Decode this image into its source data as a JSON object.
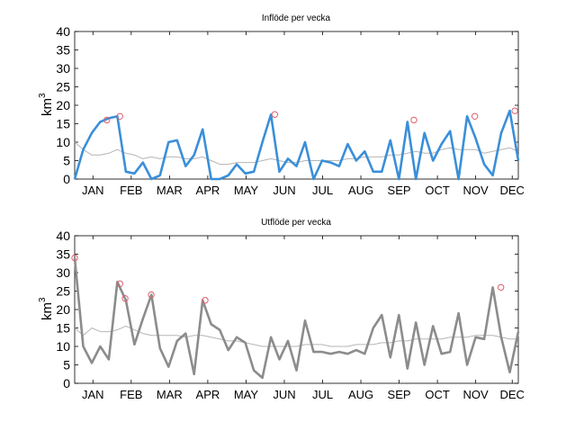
{
  "chart_data": [
    {
      "type": "line",
      "title": "Inflöde per vecka",
      "xlabel": "",
      "ylabel_main": "km",
      "ylabel_sup": "3",
      "ylim": [
        0,
        40
      ],
      "yticks": [
        0,
        5,
        10,
        15,
        20,
        25,
        30,
        35,
        40
      ],
      "xlim": [
        1,
        52
      ],
      "month_labels": [
        "JAN",
        "FEB",
        "MAR",
        "APR",
        "MAY",
        "JUN",
        "JUL",
        "AUG",
        "SEP",
        "OCT",
        "NOV",
        "DEC"
      ],
      "month_positions": [
        3.1,
        7.5,
        11.9,
        16.3,
        20.7,
        25.1,
        29.5,
        33.9,
        38.3,
        42.7,
        47.1,
        51.3
      ],
      "grid": false,
      "series": [
        {
          "color": "#3a8fd9",
          "values": [
            0,
            8,
            12.5,
            15.5,
            16.5,
            17,
            2,
            1.5,
            4.5,
            0,
            1,
            10,
            10.5,
            3.5,
            6.5,
            13.5,
            0,
            0,
            1,
            4,
            1.5,
            2,
            10,
            17.5,
            2,
            5.5,
            3.5,
            10,
            0,
            5,
            4.5,
            3.5,
            9.5,
            5,
            7.5,
            2,
            2,
            10.5,
            0,
            15.5,
            0,
            12.5,
            5,
            9.5,
            13,
            0,
            17,
            11,
            4,
            1,
            12.5,
            18.5,
            5
          ]
        },
        {
          "color": "#b5b5b5",
          "values": [
            10,
            8,
            6.5,
            6.5,
            7,
            8,
            7,
            6.5,
            5.5,
            6,
            5.5,
            6,
            6,
            5.5,
            5.5,
            6,
            5,
            4,
            4,
            4.5,
            4.5,
            4.5,
            5,
            5.5,
            5,
            4.5,
            4.5,
            5,
            5,
            5,
            5,
            5,
            5.5,
            5.5,
            6,
            6,
            6,
            6.5,
            6.5,
            7,
            7.5,
            7,
            7,
            8,
            8.5,
            8,
            8,
            8,
            7,
            7.5,
            8,
            8.5,
            7.5
          ]
        }
      ],
      "peaks": [
        {
          "x": 4.7,
          "y": 16
        },
        {
          "x": 6.2,
          "y": 17
        },
        {
          "x": 24,
          "y": 17.5
        },
        {
          "x": 40,
          "y": 16
        },
        {
          "x": 47,
          "y": 17
        },
        {
          "x": 51.6,
          "y": 18.5
        }
      ]
    },
    {
      "type": "line",
      "title": "Utflöde per vecka",
      "xlabel": "",
      "ylabel_main": "km",
      "ylabel_sup": "3",
      "ylim": [
        0,
        40
      ],
      "yticks": [
        0,
        5,
        10,
        15,
        20,
        25,
        30,
        35,
        40
      ],
      "xlim": [
        1,
        52
      ],
      "month_labels": [
        "JAN",
        "FEB",
        "MAR",
        "APR",
        "MAY",
        "JUN",
        "JUL",
        "AUG",
        "SEP",
        "OCT",
        "NOV",
        "DEC"
      ],
      "month_positions": [
        3.1,
        7.5,
        11.9,
        16.3,
        20.7,
        25.1,
        29.5,
        33.9,
        38.3,
        42.7,
        47.1,
        51.3
      ],
      "grid": false,
      "series": [
        {
          "color": "#8c8c8c",
          "values": [
            34,
            10,
            5.5,
            10,
            6.5,
            27.5,
            22.5,
            10.5,
            17.5,
            24,
            9.5,
            4.5,
            11.5,
            13.5,
            2.5,
            22.5,
            16,
            14.5,
            9,
            12.5,
            11,
            3.5,
            1.5,
            12.5,
            6.5,
            11.5,
            3.5,
            17,
            8.5,
            8.5,
            8,
            8.5,
            8,
            9,
            8,
            15,
            18.5,
            7,
            18.5,
            4,
            16.5,
            5,
            15.5,
            8,
            8.5,
            19,
            5,
            12.5,
            12,
            26,
            12.5,
            3,
            14
          ]
        },
        {
          "color": "#b5b5b5",
          "values": [
            15,
            13,
            15,
            14,
            14,
            14.5,
            15.5,
            14.5,
            13.5,
            13,
            13,
            13,
            13,
            12.5,
            13,
            13,
            12.5,
            12,
            11.5,
            11.5,
            11,
            10.5,
            10,
            10,
            10,
            10,
            10,
            10.5,
            10.5,
            10.5,
            10,
            10,
            10,
            10.5,
            10.5,
            10.5,
            11,
            11,
            11.5,
            11.5,
            12,
            12,
            12,
            12,
            12.5,
            12.5,
            12.5,
            13,
            13,
            13,
            12.5,
            12,
            12
          ]
        }
      ],
      "peaks": [
        {
          "x": 1,
          "y": 34
        },
        {
          "x": 6.2,
          "y": 27
        },
        {
          "x": 6.8,
          "y": 23
        },
        {
          "x": 9.8,
          "y": 24
        },
        {
          "x": 16,
          "y": 22.5
        },
        {
          "x": 50,
          "y": 26
        }
      ]
    }
  ]
}
